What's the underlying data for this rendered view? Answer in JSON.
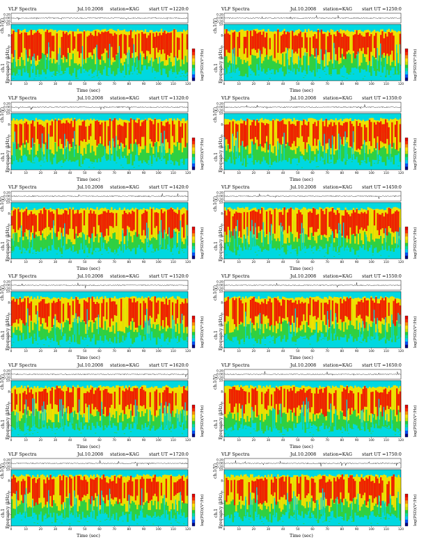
{
  "figure": {
    "app_title": "VLF Spectra",
    "date": "Jul.10.2008",
    "station": "station=KAG",
    "xlabel": "Time (sec)",
    "ts_ylabel": "ch.1(V)",
    "spec_ylabel_channel": "ch.1",
    "spec_ylabel": "Frequency (kHz)",
    "colorbar_label": "log(PSD)(V²/Hz)"
  },
  "panels": [
    {
      "id": "p1220",
      "ut": "start  UT =1220:0"
    },
    {
      "id": "p1250",
      "ut": "start  UT =1250:0"
    },
    {
      "id": "p1320",
      "ut": "start  UT =1320:0"
    },
    {
      "id": "p1350",
      "ut": "start  UT =1350:0"
    },
    {
      "id": "p1420",
      "ut": "start  UT =1420:0"
    },
    {
      "id": "p1450",
      "ut": "start  UT =1450:0"
    },
    {
      "id": "p1520",
      "ut": "start  UT =1520:0"
    },
    {
      "id": "p1550",
      "ut": "start  UT =1550:0"
    },
    {
      "id": "p1620",
      "ut": "start  UT =1620:0"
    },
    {
      "id": "p1650",
      "ut": "start  UT =1650:0"
    },
    {
      "id": "p1720",
      "ut": "start  UT =1720:0"
    },
    {
      "id": "p1750",
      "ut": "start  UT =1750:0"
    }
  ],
  "chart_data": {
    "type": "heatmap",
    "x": {
      "label": "Time (sec)",
      "range": [
        0,
        120
      ],
      "ticks": [
        "0",
        "10",
        "20",
        "30",
        "40",
        "50",
        "60",
        "70",
        "80",
        "90",
        "100",
        "110",
        "120"
      ]
    },
    "y": {
      "label": "Frequency (kHz)",
      "range": [
        0,
        10
      ],
      "ticks": [
        "0",
        "2",
        "4",
        "6",
        "8",
        "10"
      ]
    },
    "ts_y": {
      "label": "ch.1(V)",
      "ticks": [
        "-0.20",
        "0.00",
        "0.20"
      ]
    },
    "colorbar": {
      "label": "log(PSD)(V²/Hz)",
      "colors": [
        "#000080",
        "#0050ff",
        "#00c8ff",
        "#00e0a0",
        "#20d040",
        "#c8e000",
        "#ffe000",
        "#ff9000",
        "#ff2a00",
        "#e00000"
      ]
    },
    "palette": {
      "cyan": "#00d8e0",
      "green": "#30d040",
      "yellow": "#f0e000",
      "red": "#f02000",
      "blue": "#1040e0"
    }
  }
}
